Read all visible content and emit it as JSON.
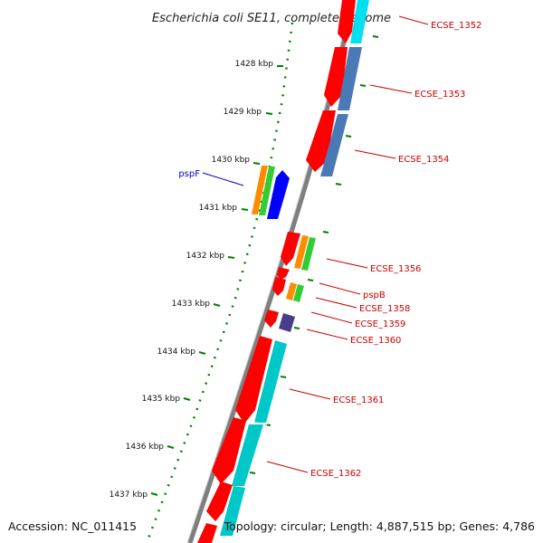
{
  "title": "Escherichia coli SE11, complete genome",
  "footer": {
    "accession": "Accession: NC_011415",
    "summary": "Topology: circular; Length: 4,887,515 bp; Genes: 4,786"
  },
  "ticks": [
    "1428 kbp",
    "1429 kbp",
    "1430 kbp",
    "1431 kbp",
    "1432 kbp",
    "1433 kbp",
    "1434 kbp",
    "1435 kbp",
    "1436 kbp",
    "1437 kbp"
  ],
  "gene_labels": {
    "pspF": "pspF",
    "ecse1352": "ECSE_1352",
    "ecse1353": "ECSE_1353",
    "ecse1354": "ECSE_1354",
    "ecse1356": "ECSE_1356",
    "pspB": "pspB",
    "ecse1358": "ECSE_1358",
    "ecse1359": "ECSE_1359",
    "ecse1360": "ECSE_1360",
    "ecse1361": "ECSE_1361",
    "ecse1362": "ECSE_1362"
  },
  "colors": {
    "backbone": "#808080",
    "cds": "#ff0000",
    "gene_orange": "#ff8c00",
    "gene_green": "#33cc33",
    "pspF_arrow": "#0000ff",
    "feature_steelblue": "#4a7ab5",
    "feature_cyan": "#00cccc",
    "feature_purple": "#483d8b",
    "tick_green": "#008000",
    "label_red": "#cc0000",
    "label_blue": "#0000cc"
  }
}
